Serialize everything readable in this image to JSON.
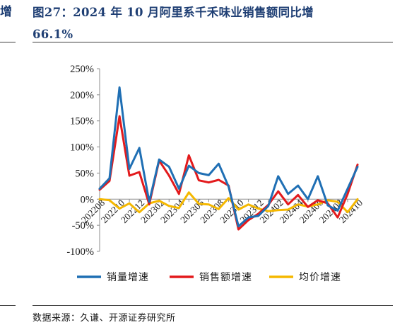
{
  "header": {
    "side_char": "增",
    "title_line1": "图27：2024 年 10 月阿里系千禾味业销售额同比增",
    "title_line2": "66.1%"
  },
  "footer": {
    "source": "数据来源：久谦、开源证券研究所"
  },
  "chart_data": {
    "type": "line",
    "ylim": [
      -100,
      250
    ],
    "yticks": [
      "250%",
      "200%",
      "150%",
      "100%",
      "50%",
      "0%",
      "-50%",
      "-100%"
    ],
    "ytick_values": [
      250,
      200,
      150,
      100,
      50,
      0,
      -50,
      -100
    ],
    "x": [
      "202208",
      "202209",
      "202210",
      "202211",
      "202212",
      "202301",
      "202302",
      "202303",
      "202304",
      "202305",
      "202306",
      "202307",
      "202308",
      "202309",
      "202310",
      "202311",
      "202312",
      "202401",
      "202402",
      "202403",
      "202404",
      "202405",
      "202406",
      "202407",
      "202408",
      "202409",
      "202410"
    ],
    "xtick_labels": [
      "202208",
      "202210",
      "202212",
      "202302",
      "202304",
      "202306",
      "202308",
      "202310",
      "202312",
      "202402",
      "202404",
      "202406",
      "202408",
      "202410"
    ],
    "legend_position": "bottom",
    "series": [
      {
        "name": "销量增速",
        "color": "#1f6fb4",
        "values": [
          20,
          40,
          214,
          58,
          98,
          -5,
          76,
          62,
          20,
          64,
          50,
          46,
          68,
          24,
          -52,
          -35,
          -32,
          -13,
          44,
          10,
          26,
          0,
          44,
          -12,
          -22,
          20,
          62
        ]
      },
      {
        "name": "销售额增速",
        "color": "#e31a1c",
        "values": [
          18,
          35,
          159,
          45,
          52,
          -10,
          74,
          45,
          10,
          84,
          36,
          32,
          37,
          26,
          -58,
          -40,
          -28,
          -11,
          15,
          -10,
          8,
          -15,
          -2,
          -8,
          -35,
          10,
          66
        ]
      },
      {
        "name": "均价增速",
        "color": "#f5b800",
        "values": [
          0,
          -2,
          -18,
          -8,
          -25,
          -8,
          -3,
          -13,
          -17,
          13,
          -9,
          -10,
          -19,
          2,
          -20,
          -10,
          -18,
          -23,
          -21,
          -20,
          -10,
          -14,
          -10,
          -2,
          -5,
          -25,
          0
        ]
      }
    ]
  }
}
